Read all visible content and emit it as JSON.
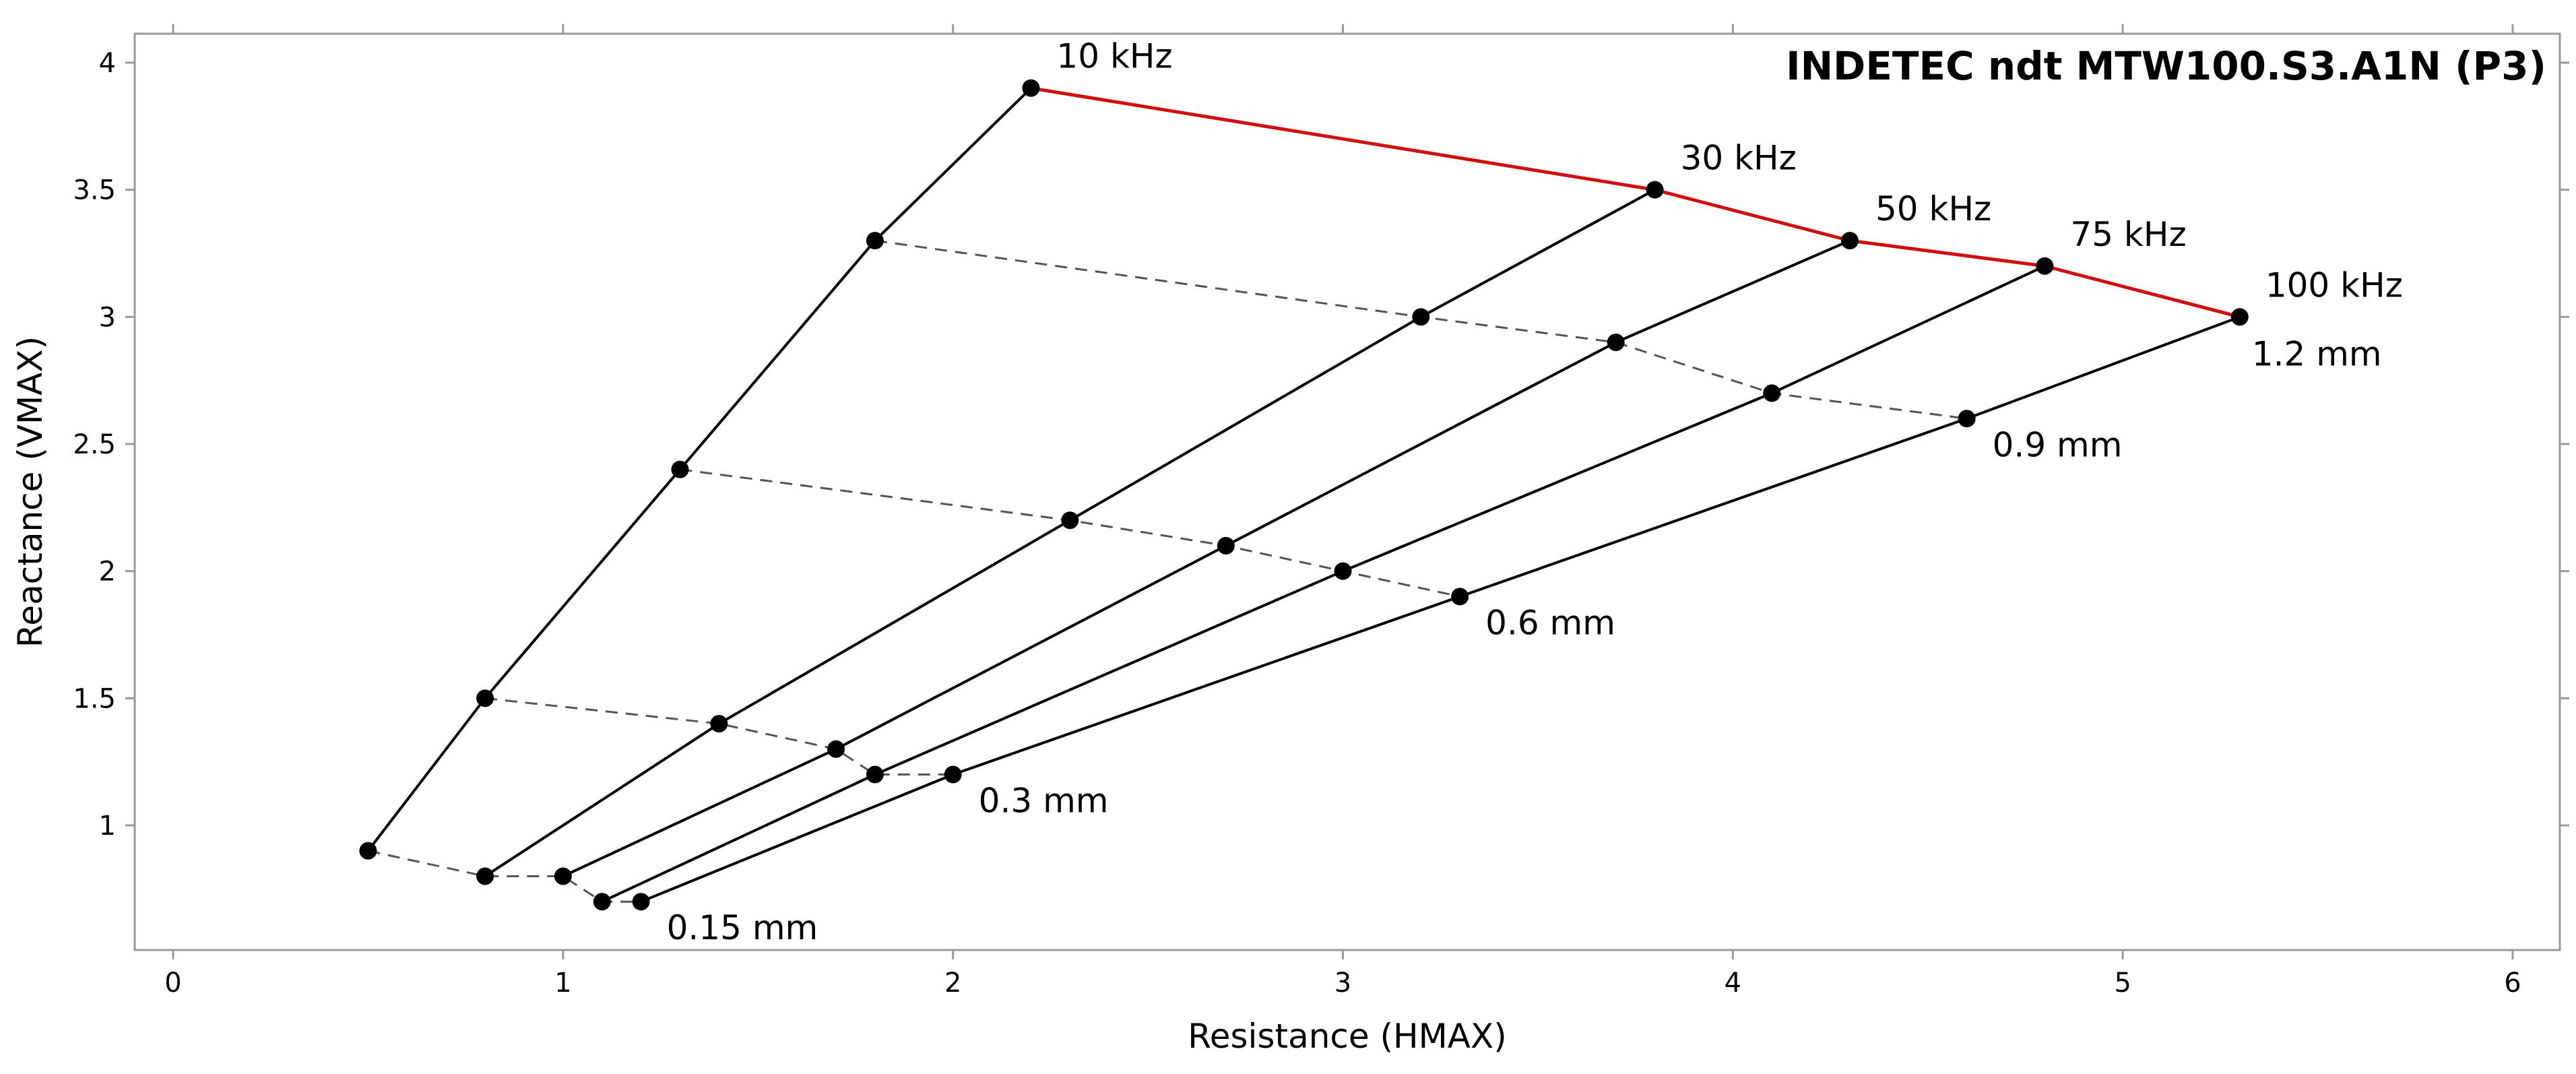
{
  "chart_data": {
    "type": "line",
    "title": "INDETEC ndt MTW100.S3.A1N (P3)",
    "xlabel": "Resistance (HMAX)",
    "ylabel": "Reactance (VMAX)",
    "xlim": [
      -0.1,
      6.1
    ],
    "ylim": [
      0.5,
      4.1
    ],
    "xticks": [
      0,
      1,
      2,
      3,
      4,
      5,
      6
    ],
    "yticks": [
      1,
      1.5,
      2,
      2.5,
      3,
      3.5,
      4
    ],
    "xtick_labels": [
      "0",
      "1",
      "2",
      "3",
      "4",
      "5",
      "6"
    ],
    "ytick_labels": [
      "1",
      "1.5",
      "2",
      "2.5",
      "3",
      "3.5",
      "4"
    ],
    "grid": false,
    "frequency_series": [
      {
        "name": "10 kHz",
        "x": [
          0.5,
          0.8,
          1.3,
          1.8,
          2.2
        ],
        "y": [
          0.9,
          1.5,
          2.4,
          3.3,
          3.9
        ]
      },
      {
        "name": "30 kHz",
        "x": [
          0.8,
          1.4,
          2.3,
          3.2,
          3.8
        ],
        "y": [
          0.8,
          1.4,
          2.2,
          3.0,
          3.5
        ]
      },
      {
        "name": "50 kHz",
        "x": [
          1.0,
          1.7,
          2.7,
          3.7,
          4.3
        ],
        "y": [
          0.8,
          1.3,
          2.1,
          2.9,
          3.3
        ]
      },
      {
        "name": "75 kHz",
        "x": [
          1.1,
          1.8,
          3.0,
          4.1,
          4.8
        ],
        "y": [
          0.7,
          1.2,
          2.0,
          2.7,
          3.2
        ]
      },
      {
        "name": "100 kHz",
        "x": [
          1.2,
          2.0,
          3.3,
          4.6,
          5.3
        ],
        "y": [
          0.7,
          1.2,
          1.9,
          2.6,
          3.0
        ]
      }
    ],
    "depth_series": [
      {
        "name": "0.15 mm",
        "x": [
          0.5,
          0.8,
          1.0,
          1.1,
          1.2
        ],
        "y": [
          0.9,
          0.8,
          0.8,
          0.7,
          0.7
        ]
      },
      {
        "name": "0.3 mm",
        "x": [
          0.8,
          1.4,
          1.7,
          1.8,
          2.0
        ],
        "y": [
          1.5,
          1.4,
          1.3,
          1.2,
          1.2
        ]
      },
      {
        "name": "0.6 mm",
        "x": [
          1.3,
          2.3,
          2.7,
          3.0,
          3.3
        ],
        "y": [
          2.4,
          2.2,
          2.1,
          2.0,
          1.9
        ]
      },
      {
        "name": "0.9 mm",
        "x": [
          1.8,
          3.2,
          3.7,
          4.1,
          4.6
        ],
        "y": [
          3.3,
          3.0,
          2.9,
          2.7,
          2.6
        ]
      },
      {
        "name": "1.2 mm",
        "x": [
          2.2,
          3.8,
          4.3,
          4.8,
          5.3
        ],
        "y": [
          3.9,
          3.5,
          3.3,
          3.2,
          3.0
        ]
      }
    ],
    "highlight_series": "1.2 mm",
    "colors": {
      "frequency_line": "#000000",
      "depth_line": "#555555",
      "highlight": "#d01010",
      "marker": "#000000",
      "axis": "#999999"
    }
  }
}
